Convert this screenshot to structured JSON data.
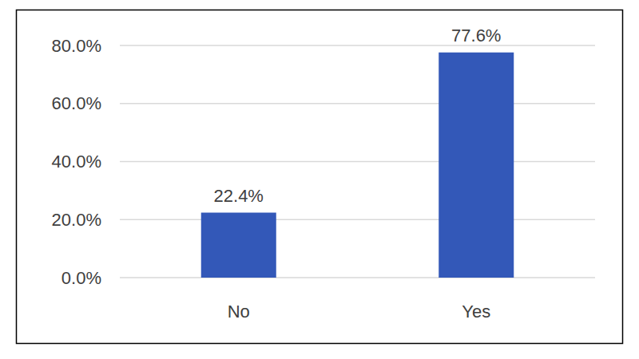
{
  "chart_data": {
    "type": "bar",
    "categories": [
      "No",
      "Yes"
    ],
    "values": [
      22.4,
      77.6
    ],
    "value_labels": [
      "22.4%",
      "77.6%"
    ],
    "data_labels": true,
    "color": "#3358b8",
    "ylim": [
      0,
      80
    ],
    "yticks": [
      {
        "value": 0,
        "label": "0.0%"
      },
      {
        "value": 20,
        "label": "20.0%"
      },
      {
        "value": 40,
        "label": "40.0%"
      },
      {
        "value": 60,
        "label": "60.0%"
      },
      {
        "value": 80,
        "label": "80.0%"
      }
    ],
    "grid": true
  }
}
